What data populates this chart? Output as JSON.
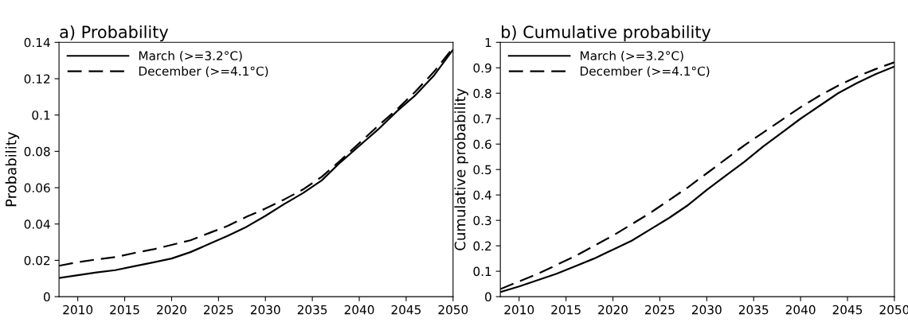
{
  "chart_data": [
    {
      "type": "line",
      "title": "a) Probability",
      "ylabel": "Probability",
      "x": [
        2008,
        2010,
        2012,
        2014,
        2016,
        2018,
        2020,
        2022,
        2024,
        2026,
        2028,
        2030,
        2032,
        2034,
        2036,
        2038,
        2040,
        2042,
        2044,
        2046,
        2048,
        2050
      ],
      "series": [
        {
          "name": "March (>=3.2°C)",
          "color": "#000000",
          "line_style": "solid",
          "values": [
            0.0103,
            0.0118,
            0.0133,
            0.0146,
            0.0167,
            0.0188,
            0.021,
            0.0245,
            0.029,
            0.0335,
            0.0385,
            0.0445,
            0.051,
            0.057,
            0.064,
            0.074,
            0.083,
            0.092,
            0.102,
            0.111,
            0.122,
            0.136
          ]
        },
        {
          "name": "December (>=4.1°C)",
          "color": "#000000",
          "line_style": "dashed",
          "values": [
            0.017,
            0.019,
            0.0205,
            0.0218,
            0.024,
            0.026,
            0.0285,
            0.031,
            0.035,
            0.039,
            0.044,
            0.0485,
            0.0535,
            0.059,
            0.066,
            0.075,
            0.0845,
            0.094,
            0.103,
            0.113,
            0.124,
            0.137
          ]
        }
      ],
      "xlim": [
        2008,
        2050
      ],
      "xticks": [
        2010,
        2015,
        2020,
        2025,
        2030,
        2035,
        2040,
        2045,
        2050
      ],
      "ylim": [
        0,
        0.14
      ],
      "yticks": [
        0,
        0.02,
        0.04,
        0.06,
        0.08,
        {
          "value": 0.1,
          "label": "0.1"
        },
        0.12,
        0.14
      ],
      "grid": false,
      "legend": "top left",
      "marker": "none"
    },
    {
      "type": "line",
      "title": "b) Cumulative probability",
      "ylabel": "Cumulative probability",
      "x": [
        2008,
        2010,
        2012,
        2014,
        2016,
        2018,
        2020,
        2022,
        2024,
        2026,
        2028,
        2030,
        2032,
        2034,
        2036,
        2038,
        2040,
        2042,
        2044,
        2046,
        2048,
        2050
      ],
      "series": [
        {
          "name": "March (>=3.2°C)",
          "color": "#000000",
          "line_style": "solid",
          "values": [
            0.018,
            0.04,
            0.065,
            0.09,
            0.12,
            0.15,
            0.185,
            0.22,
            0.265,
            0.31,
            0.36,
            0.42,
            0.475,
            0.53,
            0.59,
            0.645,
            0.7,
            0.75,
            0.8,
            0.84,
            0.875,
            0.905
          ]
        },
        {
          "name": "December (>=4.1°C)",
          "color": "#000000",
          "line_style": "dashed",
          "values": [
            0.03,
            0.06,
            0.09,
            0.125,
            0.16,
            0.2,
            0.24,
            0.285,
            0.33,
            0.38,
            0.43,
            0.485,
            0.54,
            0.595,
            0.645,
            0.695,
            0.745,
            0.79,
            0.83,
            0.865,
            0.895,
            0.922
          ]
        }
      ],
      "xlim": [
        2008,
        2050
      ],
      "xticks": [
        2010,
        2015,
        2020,
        2025,
        2030,
        2035,
        2040,
        2045,
        2050
      ],
      "ylim": [
        0,
        1
      ],
      "yticks": [
        0,
        0.1,
        0.2,
        0.3,
        0.4,
        0.5,
        0.6,
        0.7,
        0.8,
        0.9,
        1
      ],
      "grid": false,
      "legend": "top left",
      "marker": "none"
    }
  ]
}
